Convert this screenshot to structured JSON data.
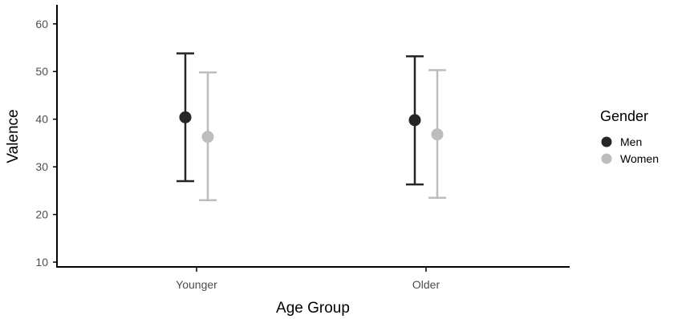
{
  "chart_data": {
    "type": "scatter",
    "title": "",
    "xlabel": "Age Group",
    "ylabel": "Valence",
    "categories": [
      "Younger",
      "Older"
    ],
    "ylim": [
      9,
      64
    ],
    "yticks": [
      10,
      20,
      30,
      40,
      50,
      60
    ],
    "grid": false,
    "legend": {
      "title": "Gender",
      "position": "right"
    },
    "series": [
      {
        "name": "Men",
        "color": "#262626",
        "values": [
          40.4,
          39.8
        ],
        "lower": [
          27.0,
          26.3
        ],
        "upper": [
          53.8,
          53.2
        ]
      },
      {
        "name": "Women",
        "color": "#bdbdbd",
        "values": [
          36.3,
          36.8
        ],
        "lower": [
          23.0,
          23.5
        ],
        "upper": [
          49.8,
          50.3
        ]
      }
    ]
  }
}
